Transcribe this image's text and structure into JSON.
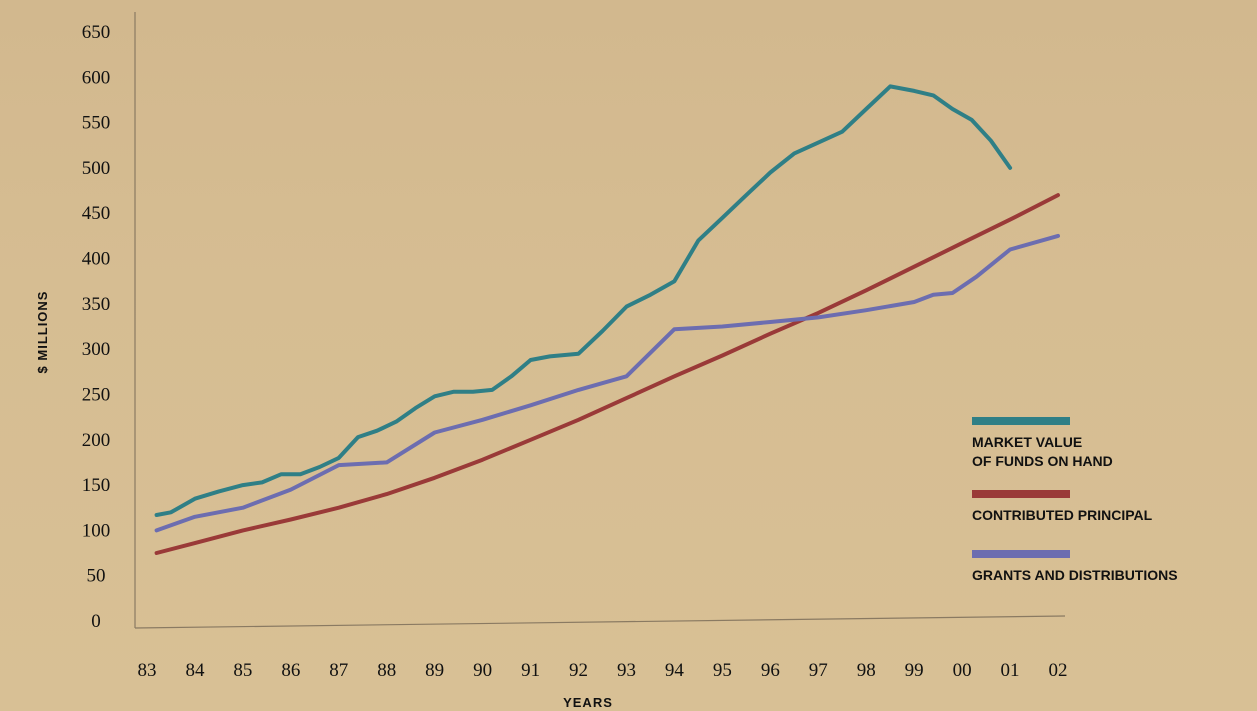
{
  "chart_data": {
    "type": "line",
    "title": "",
    "xlabel": "YEARS",
    "ylabel": "$ MILLIONS",
    "categories": [
      "83",
      "84",
      "85",
      "86",
      "87",
      "88",
      "89",
      "90",
      "91",
      "92",
      "93",
      "94",
      "95",
      "96",
      "97",
      "98",
      "99",
      "00",
      "01",
      "02"
    ],
    "yticks": [
      "0",
      "50",
      "100",
      "150",
      "200",
      "250",
      "300",
      "350",
      "400",
      "450",
      "500",
      "550",
      "600",
      "650"
    ],
    "ylim": [
      0,
      650
    ],
    "xlim": [
      83,
      102
    ],
    "grid": false,
    "legend_position": "bottom-right",
    "series": [
      {
        "name": "MARKET VALUE OF FUNDS ON HAND",
        "color": "#2f7f86",
        "points": [
          [
            83.2,
            117
          ],
          [
            83.5,
            120
          ],
          [
            84,
            135
          ],
          [
            84.5,
            143
          ],
          [
            85,
            150
          ],
          [
            85.4,
            153
          ],
          [
            85.8,
            162
          ],
          [
            86.2,
            162
          ],
          [
            86.6,
            170
          ],
          [
            87,
            180
          ],
          [
            87.4,
            203
          ],
          [
            87.8,
            210
          ],
          [
            88.2,
            220
          ],
          [
            88.6,
            235
          ],
          [
            89,
            248
          ],
          [
            89.4,
            253
          ],
          [
            89.8,
            253
          ],
          [
            90.2,
            255
          ],
          [
            90.6,
            270
          ],
          [
            91,
            288
          ],
          [
            91.4,
            292
          ],
          [
            92,
            295
          ],
          [
            92.5,
            320
          ],
          [
            93,
            347
          ],
          [
            93.5,
            360
          ],
          [
            94,
            375
          ],
          [
            94.5,
            420
          ],
          [
            95,
            445
          ],
          [
            95.5,
            470
          ],
          [
            96,
            495
          ],
          [
            96.5,
            516
          ],
          [
            97,
            528
          ],
          [
            97.5,
            540
          ],
          [
            98,
            565
          ],
          [
            98.5,
            590
          ],
          [
            99,
            585
          ],
          [
            99.4,
            580
          ],
          [
            99.8,
            565
          ],
          [
            100.2,
            553
          ],
          [
            100.6,
            530
          ],
          [
            101,
            500
          ]
        ]
      },
      {
        "name": "CONTRIBUTED PRINCIPAL",
        "color": "#9a3a38",
        "points": [
          [
            83.2,
            75
          ],
          [
            84,
            86
          ],
          [
            85,
            100
          ],
          [
            86,
            112
          ],
          [
            87,
            125
          ],
          [
            88,
            140
          ],
          [
            89,
            158
          ],
          [
            90,
            178
          ],
          [
            91,
            200
          ],
          [
            92,
            222
          ],
          [
            93,
            246
          ],
          [
            94,
            270
          ],
          [
            95,
            293
          ],
          [
            96,
            317
          ],
          [
            97,
            340
          ],
          [
            98,
            365
          ],
          [
            99,
            391
          ],
          [
            100,
            417
          ],
          [
            101,
            443
          ],
          [
            102,
            470
          ]
        ]
      },
      {
        "name": "GRANTS AND DISTRIBUTIONS",
        "color": "#6c6db0",
        "points": [
          [
            83.2,
            100
          ],
          [
            84,
            115
          ],
          [
            85,
            125
          ],
          [
            86,
            145
          ],
          [
            87,
            172
          ],
          [
            88,
            175
          ],
          [
            89,
            208
          ],
          [
            90,
            222
          ],
          [
            91,
            238
          ],
          [
            92,
            255
          ],
          [
            93,
            270
          ],
          [
            94,
            322
          ],
          [
            95,
            325
          ],
          [
            96,
            330
          ],
          [
            97,
            335
          ],
          [
            98,
            343
          ],
          [
            99,
            352
          ],
          [
            99.4,
            360
          ],
          [
            99.8,
            362
          ],
          [
            100.3,
            380
          ],
          [
            101,
            410
          ],
          [
            102,
            425
          ]
        ]
      }
    ]
  }
}
